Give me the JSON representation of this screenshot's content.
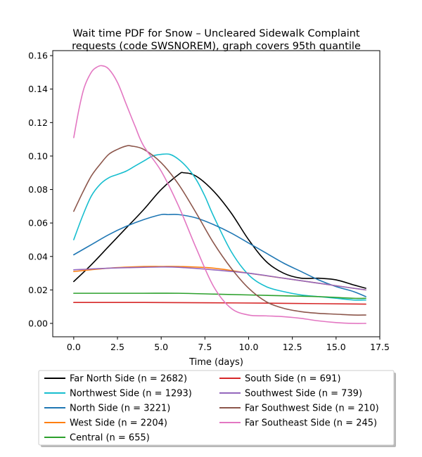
{
  "chart_data": {
    "type": "line",
    "title": "Wait time PDF for Snow – Uncleared Sidewalk Complaint requests (code SWSNOREM), graph covers 95th quantile",
    "title_lines": [
      "Wait time PDF for Snow – Uncleared Sidewalk Complaint",
      "requests (code SWSNOREM), graph covers 95th quantile"
    ],
    "xlabel": "Time (days)",
    "ylabel": "",
    "xlim": [
      -1.2,
      17.5
    ],
    "ylim": [
      -0.008,
      0.163
    ],
    "xticks": [
      0.0,
      2.5,
      5.0,
      7.5,
      10.0,
      12.5,
      15.0,
      17.5
    ],
    "xtick_labels": [
      "0.0",
      "2.5",
      "5.0",
      "7.5",
      "10.0",
      "12.5",
      "15.0",
      "17.5"
    ],
    "yticks": [
      0.0,
      0.02,
      0.04,
      0.06,
      0.08,
      0.1,
      0.12,
      0.14,
      0.16
    ],
    "ytick_labels": [
      "0.00",
      "0.02",
      "0.04",
      "0.06",
      "0.08",
      "0.10",
      "0.12",
      "0.14",
      "0.16"
    ],
    "grid": false,
    "legend_position": "below",
    "legend_columns": 2,
    "series": [
      {
        "name": "Far North Side (n = 2682)",
        "color": "#000000",
        "x": [
          0,
          1,
          2,
          3,
          4,
          5,
          6,
          6.3,
          7,
          8,
          9,
          10,
          11,
          12,
          13,
          14,
          15,
          16,
          16.7
        ],
        "y": [
          0.025,
          0.035,
          0.046,
          0.057,
          0.068,
          0.08,
          0.089,
          0.09,
          0.088,
          0.079,
          0.066,
          0.05,
          0.037,
          0.03,
          0.027,
          0.027,
          0.026,
          0.023,
          0.021
        ]
      },
      {
        "name": "Northwest Side (n = 1293)",
        "color": "#17becf",
        "x": [
          0,
          0.5,
          1,
          1.5,
          2,
          2.5,
          3,
          3.5,
          4,
          4.5,
          5,
          5.5,
          6,
          6.5,
          7,
          7.5,
          8,
          9,
          10,
          11,
          12,
          13,
          14,
          15,
          16,
          16.7
        ],
        "y": [
          0.05,
          0.064,
          0.076,
          0.083,
          0.087,
          0.089,
          0.091,
          0.094,
          0.097,
          0.1,
          0.101,
          0.101,
          0.098,
          0.093,
          0.086,
          0.076,
          0.064,
          0.043,
          0.029,
          0.022,
          0.019,
          0.017,
          0.016,
          0.015,
          0.014,
          0.014
        ]
      },
      {
        "name": "North Side (n = 3221)",
        "color": "#1f77b4",
        "x": [
          0,
          1,
          2,
          3,
          4,
          5,
          5.4,
          6,
          7,
          8,
          9,
          10,
          11,
          12,
          13,
          14,
          15,
          16,
          16.7
        ],
        "y": [
          0.041,
          0.047,
          0.053,
          0.058,
          0.062,
          0.065,
          0.065,
          0.065,
          0.063,
          0.059,
          0.054,
          0.048,
          0.042,
          0.036,
          0.031,
          0.026,
          0.022,
          0.019,
          0.016
        ]
      },
      {
        "name": "West Side (n = 2204)",
        "color": "#ff7f0e",
        "x": [
          0,
          2,
          4,
          5,
          6,
          8,
          10,
          12,
          14,
          16,
          16.7
        ],
        "y": [
          0.031,
          0.033,
          0.034,
          0.034,
          0.034,
          0.033,
          0.03,
          0.027,
          0.024,
          0.021,
          0.02
        ]
      },
      {
        "name": "Central (n = 655)",
        "color": "#2ca02c",
        "x": [
          0,
          2,
          4,
          6,
          8,
          10,
          12,
          14,
          16,
          16.7
        ],
        "y": [
          0.018,
          0.018,
          0.018,
          0.018,
          0.0175,
          0.017,
          0.0165,
          0.016,
          0.015,
          0.015
        ]
      },
      {
        "name": "South Side (n = 691)",
        "color": "#d62728",
        "x": [
          0,
          4,
          8,
          12,
          16.7
        ],
        "y": [
          0.0125,
          0.0125,
          0.0123,
          0.012,
          0.0115
        ]
      },
      {
        "name": "Southwest Side (n = 739)",
        "color": "#9467bd",
        "x": [
          0,
          2,
          4,
          5,
          6,
          8,
          10,
          12,
          14,
          16,
          16.7
        ],
        "y": [
          0.032,
          0.033,
          0.0335,
          0.0337,
          0.0335,
          0.032,
          0.03,
          0.027,
          0.024,
          0.021,
          0.02
        ]
      },
      {
        "name": "Far Southwest Side (n = 210)",
        "color": "#8c564b",
        "x": [
          0,
          0.5,
          1,
          1.5,
          2,
          2.5,
          3,
          3.3,
          4,
          5,
          6,
          7,
          8,
          9,
          10,
          11,
          12,
          13,
          14,
          15,
          16,
          16.7
        ],
        "y": [
          0.067,
          0.078,
          0.088,
          0.095,
          0.101,
          0.104,
          0.106,
          0.106,
          0.104,
          0.096,
          0.083,
          0.066,
          0.048,
          0.033,
          0.021,
          0.013,
          0.009,
          0.007,
          0.006,
          0.0055,
          0.005,
          0.005
        ]
      },
      {
        "name": "Far Southeast Side (n = 245)",
        "color": "#e377c2",
        "x": [
          0,
          0.3,
          0.6,
          1,
          1.3,
          1.6,
          2,
          2.5,
          3,
          3.5,
          4,
          5,
          6,
          7,
          8,
          9,
          10,
          11,
          12,
          13,
          14,
          15,
          16,
          16.7
        ],
        "y": [
          0.111,
          0.128,
          0.141,
          0.15,
          0.153,
          0.154,
          0.152,
          0.144,
          0.131,
          0.118,
          0.106,
          0.091,
          0.07,
          0.045,
          0.022,
          0.009,
          0.005,
          0.0045,
          0.004,
          0.003,
          0.0015,
          0.0005,
          0.0,
          0.0
        ]
      }
    ]
  }
}
